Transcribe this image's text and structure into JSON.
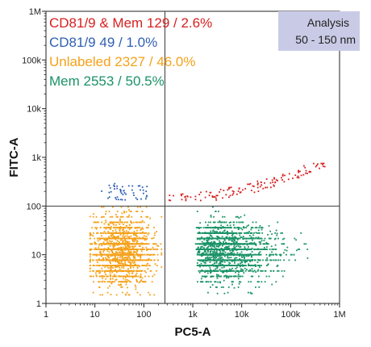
{
  "chart_data": {
    "type": "scatter",
    "title": "",
    "xlabel": "PC5-A",
    "ylabel": "FITC-A",
    "xscale": "log",
    "yscale": "log",
    "xlim": [
      1,
      1000000
    ],
    "ylim": [
      1,
      1000000
    ],
    "x_tick_values": [
      1,
      10,
      100,
      1000,
      10000,
      100000,
      1000000
    ],
    "x_tick_labels": [
      "1",
      "10",
      "100",
      "1k",
      "10k",
      "100k",
      "1M"
    ],
    "y_tick_values": [
      1,
      10,
      100,
      1000,
      10000,
      100000,
      1000000
    ],
    "y_tick_labels": [
      "1",
      "10",
      "100",
      "1k",
      "10k",
      "100k",
      "1M"
    ],
    "grid": false,
    "gate_lines": {
      "x": 270,
      "y": 100
    },
    "gate_line_color": "#3a3a3a",
    "analysis_box": {
      "line1": "Analysis",
      "line2": "50 - 150 nm",
      "fill": "#c9cbe6"
    },
    "legend_position": "top-left",
    "series": [
      {
        "name": "CD81/9 & Mem",
        "count": "129",
        "percent": "2.6%",
        "color": "#d62020",
        "x_range": [
          300,
          500000
        ],
        "y_range": [
          130,
          750
        ],
        "trend": "rising"
      },
      {
        "name": "CD81/9",
        "count": "49",
        "percent": "1.0%",
        "color": "#2f5fb3",
        "x_range": [
          13,
          130
        ],
        "y_range": [
          130,
          290
        ],
        "trend": "flat"
      },
      {
        "name": "Unlabeled",
        "count": "2327",
        "percent": "46.0%",
        "color": "#f5a11a",
        "x_range": [
          8,
          230
        ],
        "y_range": [
          1.5,
          95
        ],
        "center": [
          35,
          12
        ],
        "trend": "cluster"
      },
      {
        "name": "Mem",
        "count": "2553",
        "percent": "50.5%",
        "color": "#1a9367",
        "x_range": [
          300,
          250000
        ],
        "y_range": [
          1.6,
          95
        ],
        "center": [
          1500,
          12
        ],
        "trend": "tail-right"
      }
    ]
  }
}
